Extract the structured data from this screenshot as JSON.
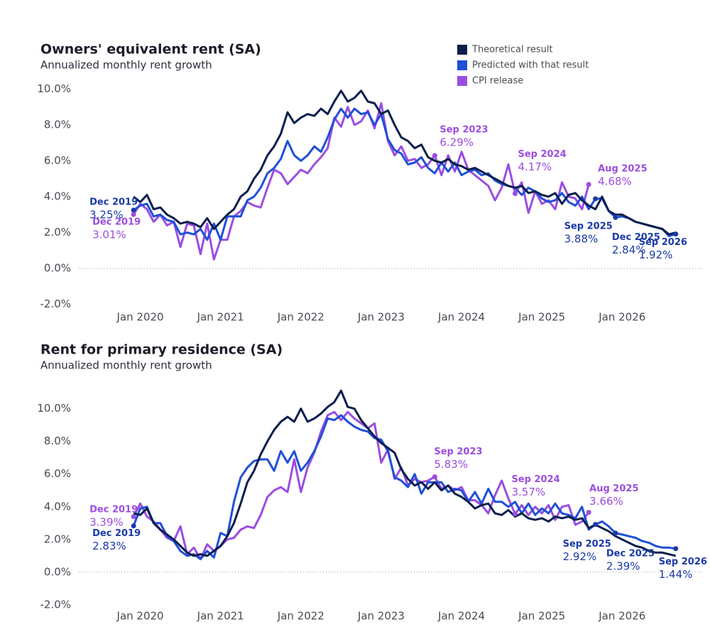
{
  "chart_data": [
    {
      "type": "line",
      "title": "Owners' equivalent rent (SA)",
      "subtitle": "Annualized monthly rent growth",
      "legend": "top-right",
      "x": [
        "2019-12",
        "2020-01",
        "2020-02",
        "2020-03",
        "2020-04",
        "2020-05",
        "2020-06",
        "2020-07",
        "2020-08",
        "2020-09",
        "2020-10",
        "2020-11",
        "2020-12",
        "2021-01",
        "2021-02",
        "2021-03",
        "2021-04",
        "2021-05",
        "2021-06",
        "2021-07",
        "2021-08",
        "2021-09",
        "2021-10",
        "2021-11",
        "2021-12",
        "2022-01",
        "2022-02",
        "2022-03",
        "2022-04",
        "2022-05",
        "2022-06",
        "2022-07",
        "2022-08",
        "2022-09",
        "2022-10",
        "2022-11",
        "2022-12",
        "2023-01",
        "2023-02",
        "2023-03",
        "2023-04",
        "2023-05",
        "2023-06",
        "2023-07",
        "2023-08",
        "2023-09",
        "2023-10",
        "2023-11",
        "2023-12",
        "2024-01",
        "2024-02",
        "2024-03",
        "2024-04",
        "2024-05",
        "2024-06",
        "2024-07",
        "2024-08",
        "2024-09",
        "2024-10",
        "2024-11",
        "2024-12",
        "2025-01",
        "2025-02",
        "2025-03",
        "2025-04",
        "2025-05",
        "2025-06",
        "2025-07",
        "2025-08",
        "2025-09",
        "2025-10",
        "2025-11",
        "2025-12",
        "2026-01",
        "2026-02",
        "2026-03",
        "2026-04",
        "2026-05",
        "2026-06",
        "2026-07",
        "2026-08",
        "2026-09"
      ],
      "series": [
        {
          "name": "Theoretical result",
          "color": "#0b1f4d",
          "values": [
            4.0,
            3.7,
            4.1,
            3.3,
            3.4,
            3.0,
            2.8,
            2.5,
            2.6,
            2.5,
            2.3,
            2.8,
            2.2,
            2.6,
            3.0,
            3.3,
            4.0,
            4.3,
            5.0,
            5.5,
            6.3,
            6.8,
            7.5,
            8.7,
            8.1,
            8.4,
            8.6,
            8.5,
            8.9,
            8.6,
            9.3,
            9.9,
            9.3,
            9.5,
            9.9,
            9.3,
            9.2,
            8.6,
            8.8,
            8.0,
            7.3,
            7.1,
            6.7,
            6.9,
            6.2,
            6.0,
            5.9,
            6.1,
            5.8,
            5.7,
            5.5,
            5.6,
            5.4,
            5.2,
            5.0,
            4.8,
            4.6,
            4.5,
            4.6,
            4.2,
            4.3,
            4.1,
            4.0,
            4.2,
            3.6,
            4.1,
            4.2,
            3.8,
            3.5,
            3.3,
            4.0,
            3.2,
            3.0,
            3.0,
            2.8,
            2.6,
            2.5,
            2.4,
            2.3,
            2.2,
            1.9,
            2.0
          ]
        },
        {
          "name": "Predicted with that result",
          "color": "#1f4fd8",
          "values": [
            3.25,
            3.5,
            3.6,
            2.9,
            3.0,
            2.7,
            2.6,
            1.9,
            2.0,
            1.9,
            2.2,
            1.6,
            2.5,
            1.6,
            2.9,
            2.9,
            2.9,
            3.8,
            4.0,
            4.5,
            5.3,
            5.6,
            6.1,
            7.1,
            6.3,
            6.0,
            6.3,
            6.8,
            6.5,
            7.3,
            8.3,
            8.9,
            8.4,
            8.9,
            8.6,
            8.7,
            8.0,
            8.6,
            7.2,
            6.6,
            6.4,
            5.8,
            5.9,
            6.2,
            5.6,
            5.3,
            5.9,
            5.4,
            5.9,
            5.2,
            5.4,
            5.5,
            5.2,
            5.3,
            4.9,
            4.7,
            4.6,
            4.5,
            4.1,
            4.5,
            4.3,
            3.9,
            3.7,
            3.8,
            4.2,
            3.7,
            3.5,
            4.0,
            3.3,
            3.88,
            3.9,
            3.2,
            2.84,
            2.9,
            2.8,
            2.6,
            2.5,
            2.4,
            2.3,
            2.2,
            1.8,
            1.92
          ]
        },
        {
          "name": "CPI release",
          "color": "#9b4de0",
          "values": [
            3.01,
            3.6,
            3.3,
            2.6,
            3.0,
            2.4,
            2.6,
            1.2,
            2.5,
            2.4,
            0.8,
            2.5,
            0.5,
            1.6,
            1.6,
            2.9,
            3.2,
            3.7,
            3.5,
            3.4,
            4.5,
            5.5,
            5.3,
            4.7,
            5.1,
            5.5,
            5.3,
            5.8,
            6.2,
            6.7,
            8.4,
            7.9,
            9.0,
            8.0,
            8.2,
            8.8,
            7.8,
            9.2,
            7.1,
            6.3,
            6.8,
            6.0,
            6.1,
            5.6,
            5.8,
            6.29,
            5.2,
            6.3,
            5.4,
            6.5,
            5.5,
            5.2,
            4.9,
            4.6,
            3.8,
            4.5,
            5.8,
            4.17,
            4.8,
            3.1,
            4.3,
            3.6,
            3.8,
            3.3,
            4.8,
            4.0,
            3.9,
            3.3,
            4.68,
            null,
            null,
            null,
            null,
            null,
            null,
            null,
            null,
            null,
            null,
            null,
            null,
            null
          ]
        }
      ],
      "annotations": [
        {
          "x": "2019-12",
          "label": "Dec 2019",
          "value": 3.25,
          "value_label": "3.25%",
          "color": "#1a3aa8"
        },
        {
          "x": "2019-12",
          "label": "Dec 2019",
          "value": 3.01,
          "value_label": "3.01%",
          "color": "#9b4de0"
        },
        {
          "x": "2023-09",
          "label": "Sep 2023",
          "value": 6.29,
          "value_label": "6.29%",
          "color": "#9b4de0"
        },
        {
          "x": "2024-09",
          "label": "Sep 2024",
          "value": 4.17,
          "value_label": "4.17%",
          "color": "#9b4de0"
        },
        {
          "x": "2025-08",
          "label": "Aug 2025",
          "value": 4.68,
          "value_label": "4.68%",
          "color": "#9b4de0"
        },
        {
          "x": "2025-09",
          "label": "Sep 2025",
          "value": 3.88,
          "value_label": "3.88%",
          "color": "#1a3aa8"
        },
        {
          "x": "2025-12",
          "label": "Dec 2025",
          "value": 2.84,
          "value_label": "2.84%",
          "color": "#1a3aa8"
        },
        {
          "x": "2026-09",
          "label": "Sep 2026",
          "value": 1.92,
          "value_label": "1.92%",
          "color": "#1a3aa8"
        }
      ],
      "xlim": [
        "2019-07",
        "2026-12"
      ],
      "xticks": [
        {
          "value": "2020-01",
          "label": "Jan 2020"
        },
        {
          "value": "2021-01",
          "label": "Jan 2021"
        },
        {
          "value": "2022-01",
          "label": "Jan 2022"
        },
        {
          "value": "2023-01",
          "label": "Jan 2023"
        },
        {
          "value": "2024-01",
          "label": "Jan 2024"
        },
        {
          "value": "2025-01",
          "label": "Jan 2025"
        },
        {
          "value": "2026-01",
          "label": "Jan 2026"
        }
      ],
      "ylim": [
        -3,
        11
      ],
      "yticks": [
        {
          "value": 10,
          "label": "10.0%"
        },
        {
          "value": 8,
          "label": "8.0%"
        },
        {
          "value": 6,
          "label": "6.0%"
        },
        {
          "value": 4,
          "label": "4.0%"
        },
        {
          "value": 2,
          "label": "2.0%"
        },
        {
          "value": 0,
          "label": "0.0%"
        },
        {
          "value": -2,
          "label": "-2.0%"
        }
      ]
    },
    {
      "type": "line",
      "title": "Rent for primary residence (SA)",
      "subtitle": "Annualized monthly rent growth",
      "x": [
        "2019-12",
        "2020-01",
        "2020-02",
        "2020-03",
        "2020-04",
        "2020-05",
        "2020-06",
        "2020-07",
        "2020-08",
        "2020-09",
        "2020-10",
        "2020-11",
        "2020-12",
        "2021-01",
        "2021-02",
        "2021-03",
        "2021-04",
        "2021-05",
        "2021-06",
        "2021-07",
        "2021-08",
        "2021-09",
        "2021-10",
        "2021-11",
        "2021-12",
        "2022-01",
        "2022-02",
        "2022-03",
        "2022-04",
        "2022-05",
        "2022-06",
        "2022-07",
        "2022-08",
        "2022-09",
        "2022-10",
        "2022-11",
        "2022-12",
        "2023-01",
        "2023-02",
        "2023-03",
        "2023-04",
        "2023-05",
        "2023-06",
        "2023-07",
        "2023-08",
        "2023-09",
        "2023-10",
        "2023-11",
        "2023-12",
        "2024-01",
        "2024-02",
        "2024-03",
        "2024-04",
        "2024-05",
        "2024-06",
        "2024-07",
        "2024-08",
        "2024-09",
        "2024-10",
        "2024-11",
        "2024-12",
        "2025-01",
        "2025-02",
        "2025-03",
        "2025-04",
        "2025-05",
        "2025-06",
        "2025-07",
        "2025-08",
        "2025-09",
        "2025-10",
        "2025-11",
        "2025-12",
        "2026-01",
        "2026-02",
        "2026-03",
        "2026-04",
        "2026-05",
        "2026-06",
        "2026-07",
        "2026-08",
        "2026-09"
      ],
      "series": [
        {
          "name": "Theoretical result",
          "color": "#0b1f4d",
          "values": [
            3.6,
            3.5,
            3.9,
            3.0,
            2.6,
            2.3,
            2.0,
            1.6,
            1.2,
            1.0,
            1.1,
            1.0,
            1.3,
            1.6,
            2.2,
            3.0,
            4.2,
            5.5,
            6.2,
            7.2,
            8.0,
            8.7,
            9.2,
            9.5,
            9.2,
            10.0,
            9.2,
            9.4,
            9.7,
            10.1,
            10.4,
            11.1,
            10.1,
            10.0,
            9.3,
            8.8,
            8.3,
            7.9,
            7.6,
            7.3,
            6.3,
            5.7,
            5.3,
            5.5,
            5.1,
            5.5,
            5.0,
            5.3,
            4.8,
            4.6,
            4.3,
            3.9,
            4.1,
            4.2,
            3.6,
            3.5,
            3.8,
            3.4,
            3.6,
            3.3,
            3.2,
            3.3,
            3.1,
            3.4,
            3.3,
            3.4,
            3.2,
            3.3,
            2.7,
            2.9,
            2.7,
            2.5,
            2.2,
            2.0,
            1.8,
            1.6,
            1.5,
            1.3,
            1.2,
            1.2,
            1.1,
            1.0
          ]
        },
        {
          "name": "Predicted with that result",
          "color": "#1f4fd8",
          "values": [
            2.83,
            3.9,
            4.0,
            3.0,
            3.0,
            2.2,
            1.9,
            1.3,
            1.0,
            1.1,
            0.8,
            1.3,
            0.9,
            2.4,
            2.2,
            4.3,
            5.8,
            6.4,
            6.8,
            6.9,
            6.9,
            6.2,
            7.4,
            6.7,
            7.4,
            6.2,
            6.7,
            7.4,
            8.3,
            9.4,
            9.3,
            9.6,
            9.2,
            8.9,
            8.7,
            8.6,
            8.2,
            8.1,
            7.4,
            5.8,
            5.6,
            5.2,
            6.0,
            4.8,
            5.5,
            5.5,
            5.5,
            4.9,
            5.1,
            5.0,
            4.3,
            4.9,
            4.2,
            5.1,
            4.3,
            4.3,
            4.0,
            4.3,
            3.6,
            4.2,
            3.5,
            3.9,
            3.6,
            4.2,
            3.6,
            3.5,
            3.3,
            4.0,
            2.6,
            2.92,
            3.1,
            2.8,
            2.39,
            2.3,
            2.2,
            2.1,
            1.9,
            1.8,
            1.6,
            1.5,
            1.5,
            1.44
          ]
        },
        {
          "name": "CPI release",
          "color": "#9b4de0",
          "values": [
            3.39,
            4.2,
            3.4,
            3.1,
            2.6,
            2.1,
            1.9,
            2.8,
            1.1,
            1.5,
            0.8,
            1.7,
            1.3,
            1.6,
            2.0,
            2.1,
            2.6,
            2.8,
            2.7,
            3.5,
            4.6,
            5.0,
            5.2,
            4.9,
            6.9,
            4.9,
            6.4,
            7.3,
            8.6,
            9.6,
            9.8,
            9.3,
            9.8,
            9.4,
            9.1,
            8.8,
            9.1,
            6.7,
            7.5,
            5.7,
            6.4,
            5.3,
            5.7,
            5.5,
            5.6,
            5.83,
            5.1,
            5.3,
            5.0,
            5.2,
            4.4,
            4.4,
            4.1,
            3.6,
            4.7,
            5.6,
            4.5,
            3.57,
            4.1,
            3.5,
            4.0,
            3.6,
            4.1,
            3.2,
            4.0,
            4.1,
            2.9,
            3.1,
            3.66,
            null,
            null,
            null,
            null,
            null,
            null,
            null,
            null,
            null,
            null,
            null,
            null,
            null
          ]
        }
      ],
      "annotations": [
        {
          "x": "2019-12",
          "label": "Dec 2019",
          "value": 3.39,
          "value_label": "3.39%",
          "color": "#9b4de0"
        },
        {
          "x": "2019-12",
          "label": "Dec 2019",
          "value": 2.83,
          "value_label": "2.83%",
          "color": "#1a3aa8"
        },
        {
          "x": "2023-09",
          "label": "Sep 2023",
          "value": 5.83,
          "value_label": "5.83%",
          "color": "#9b4de0"
        },
        {
          "x": "2024-09",
          "label": "Sep 2024",
          "value": 3.57,
          "value_label": "3.57%",
          "color": "#9b4de0"
        },
        {
          "x": "2025-08",
          "label": "Aug 2025",
          "value": 3.66,
          "value_label": "3.66%",
          "color": "#9b4de0"
        },
        {
          "x": "2025-09",
          "label": "Sep 2025",
          "value": 2.92,
          "value_label": "2.92%",
          "color": "#1a3aa8"
        },
        {
          "x": "2025-12",
          "label": "Dec 2025",
          "value": 2.39,
          "value_label": "2.39%",
          "color": "#1a3aa8"
        },
        {
          "x": "2026-09",
          "label": "Sep 2026",
          "value": 1.44,
          "value_label": "1.44%",
          "color": "#1a3aa8"
        }
      ],
      "xlim": [
        "2019-07",
        "2026-12"
      ],
      "xticks": [
        {
          "value": "2020-01",
          "label": "Jan 2020"
        },
        {
          "value": "2021-01",
          "label": "Jan 2021"
        },
        {
          "value": "2022-01",
          "label": "Jan 2022"
        },
        {
          "value": "2023-01",
          "label": "Jan 2023"
        },
        {
          "value": "2024-01",
          "label": "Jan 2024"
        },
        {
          "value": "2025-01",
          "label": "Jan 2025"
        },
        {
          "value": "2026-01",
          "label": "Jan 2026"
        }
      ],
      "ylim": [
        -3,
        11.5
      ],
      "yticks": [
        {
          "value": 10,
          "label": "10.0%"
        },
        {
          "value": 8,
          "label": "8.0%"
        },
        {
          "value": 6,
          "label": "6.0%"
        },
        {
          "value": 4,
          "label": "4.0%"
        },
        {
          "value": 2,
          "label": "2.0%"
        },
        {
          "value": 0,
          "label": "0.0%"
        },
        {
          "value": -2,
          "label": "-2.0%"
        }
      ]
    }
  ]
}
